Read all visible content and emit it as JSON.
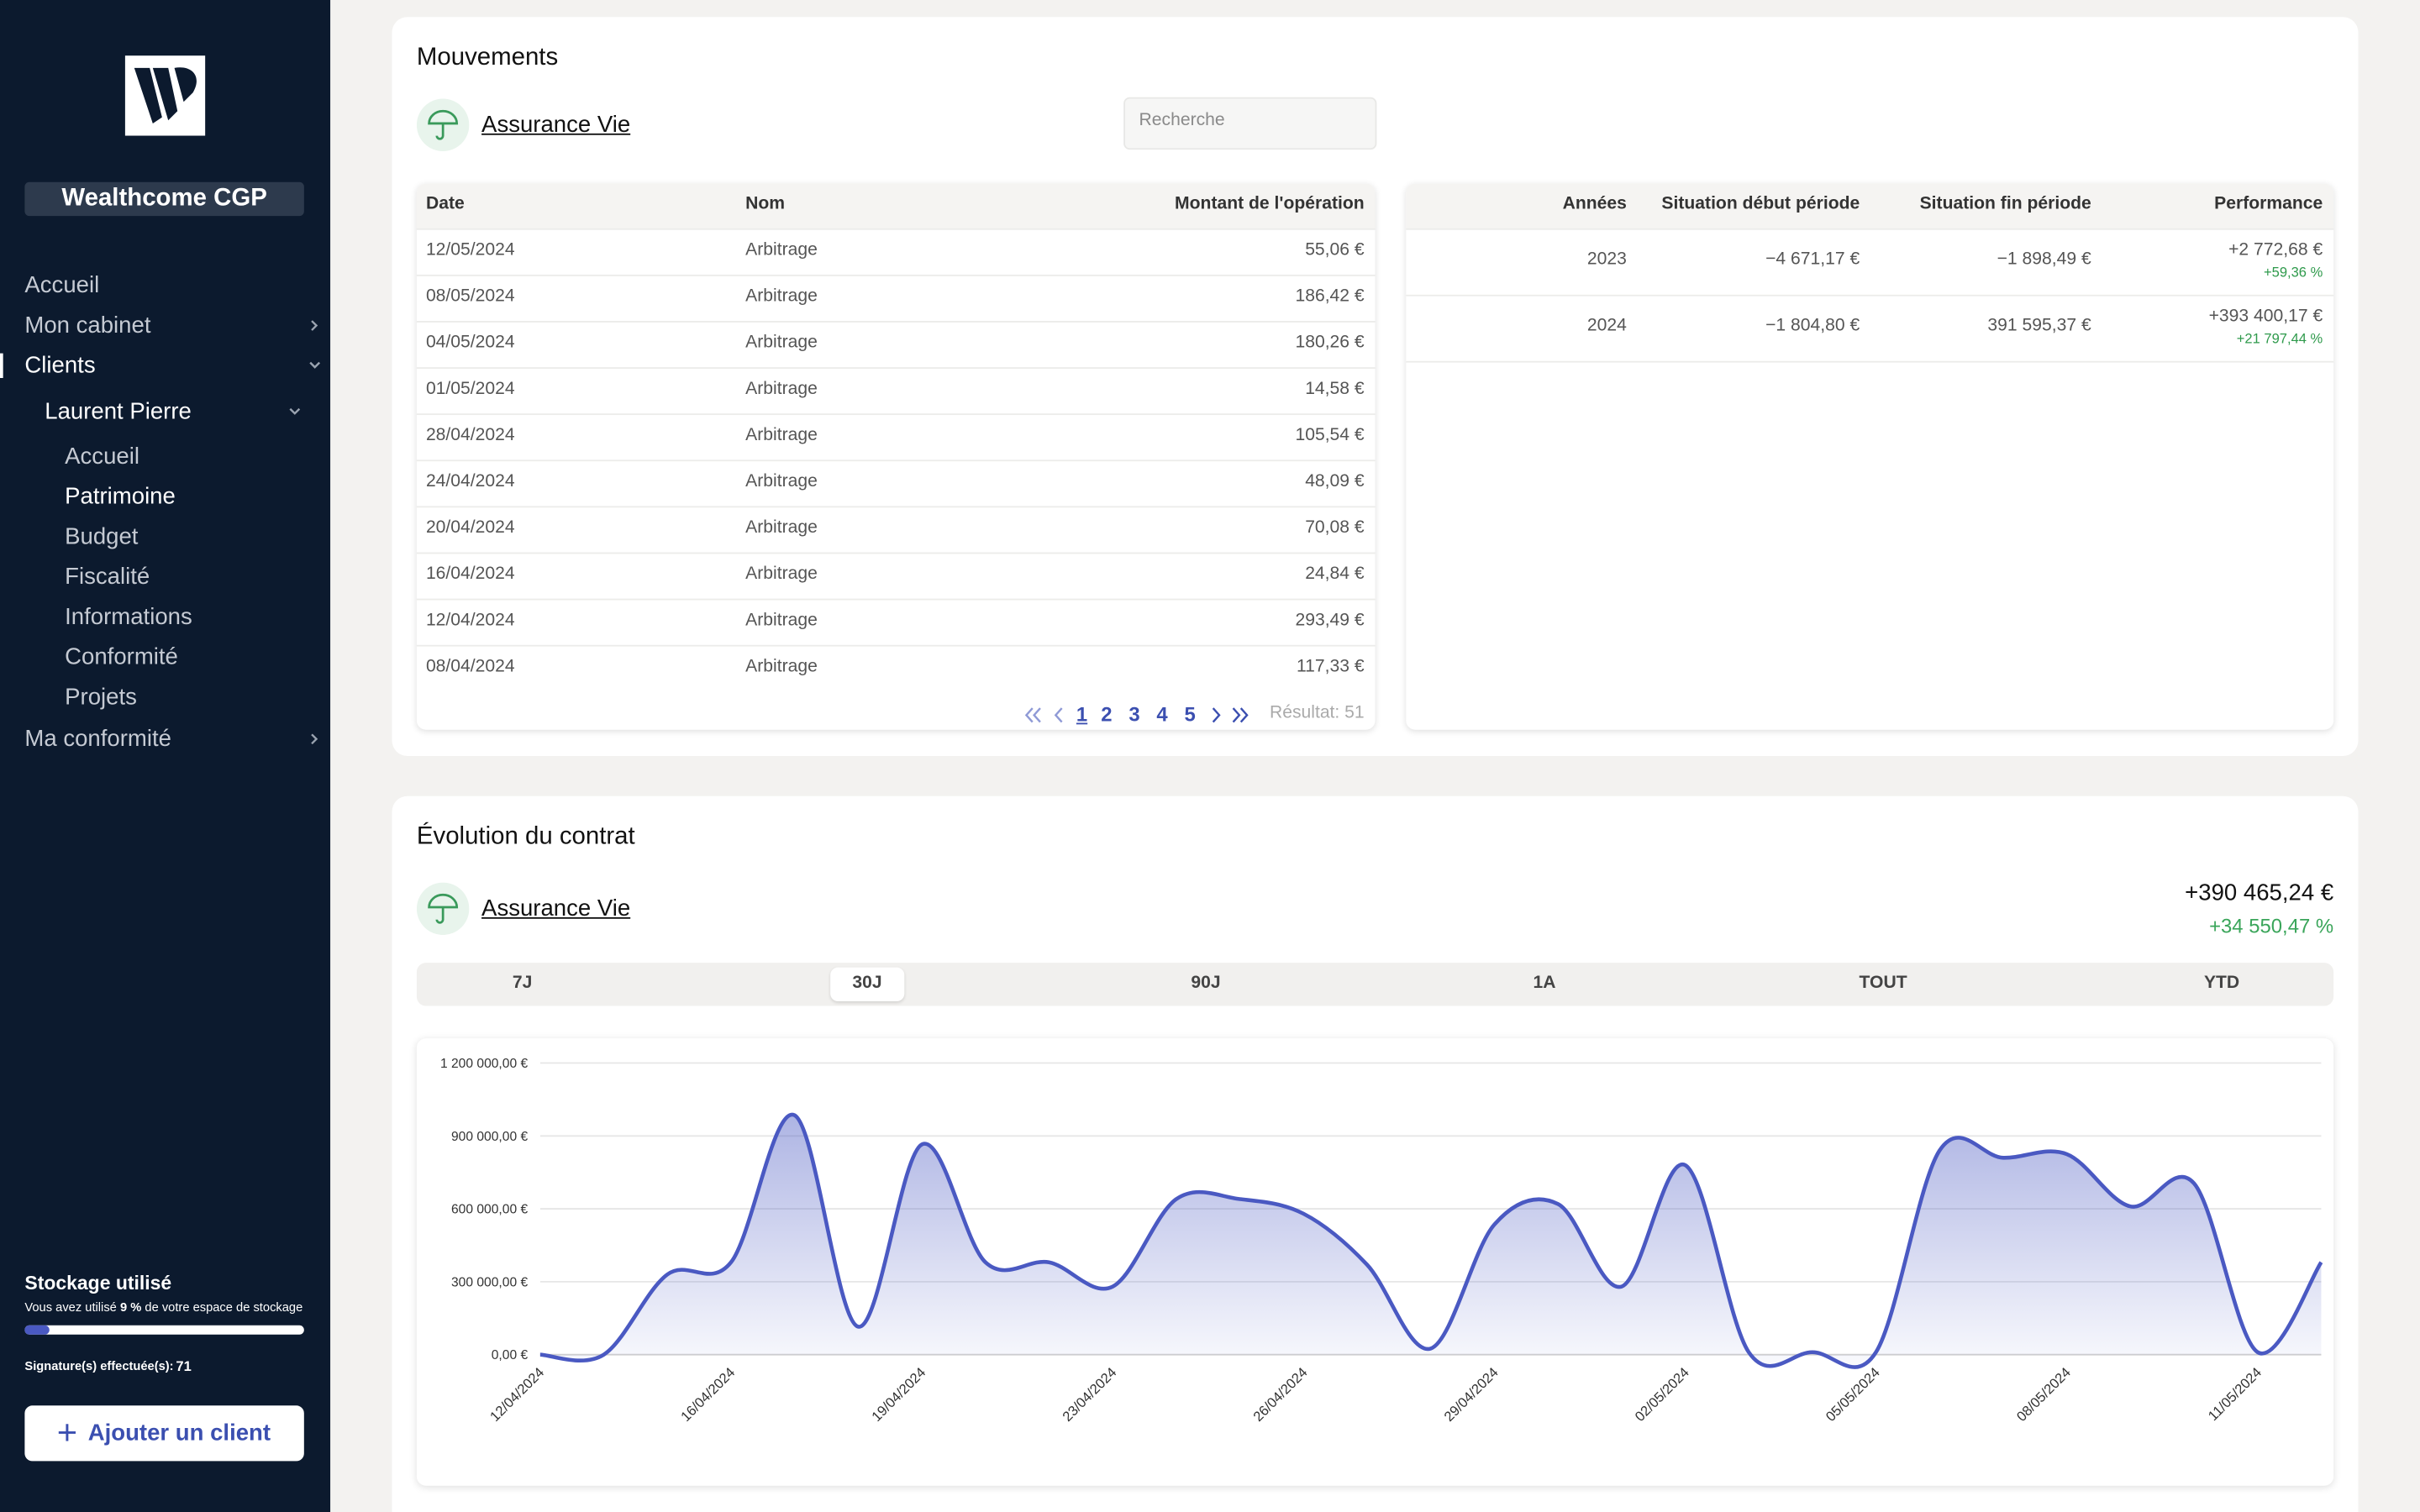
{
  "sidebar": {
    "brand": "Wealthcome CGP",
    "nav": [
      {
        "label": "Accueil"
      },
      {
        "label": "Mon cabinet",
        "expanded": false
      },
      {
        "label": "Clients",
        "expanded": true,
        "active": true
      },
      {
        "label": "Laurent Pierre",
        "expanded": true,
        "level": 1
      },
      {
        "label": "Accueil",
        "level": 2
      },
      {
        "label": "Patrimoine",
        "level": 2,
        "active": true
      },
      {
        "label": "Budget",
        "level": 2
      },
      {
        "label": "Fiscalité",
        "level": 2
      },
      {
        "label": "Informations",
        "level": 2
      },
      {
        "label": "Conformité",
        "level": 2
      },
      {
        "label": "Projets",
        "level": 2
      },
      {
        "label": "Ma conformité",
        "expanded": false
      }
    ],
    "storage": {
      "title": "Stockage utilisé",
      "text_before": "Vous avez utilisé",
      "used_percent": 9,
      "used_label": "9 %",
      "text_after": "de votre espace de stockage",
      "signatures_label": "Signature(s) effectuée(s):",
      "signatures": 71
    },
    "add_client": "Ajouter un client"
  },
  "mouvements": {
    "title": "Mouvements",
    "contract": "Assurance Vie",
    "search_placeholder": "Recherche",
    "table": {
      "headers": [
        "Date",
        "Nom",
        "Montant de l'opération"
      ],
      "rows": [
        [
          "12/05/2024",
          "Arbitrage",
          "55,06 €"
        ],
        [
          "08/05/2024",
          "Arbitrage",
          "186,42 €"
        ],
        [
          "04/05/2024",
          "Arbitrage",
          "180,26 €"
        ],
        [
          "01/05/2024",
          "Arbitrage",
          "14,58 €"
        ],
        [
          "28/04/2024",
          "Arbitrage",
          "105,54 €"
        ],
        [
          "24/04/2024",
          "Arbitrage",
          "48,09 €"
        ],
        [
          "20/04/2024",
          "Arbitrage",
          "70,08 €"
        ],
        [
          "16/04/2024",
          "Arbitrage",
          "24,84 €"
        ],
        [
          "12/04/2024",
          "Arbitrage",
          "293,49 €"
        ],
        [
          "08/04/2024",
          "Arbitrage",
          "117,33 €"
        ]
      ]
    },
    "pagination": {
      "pages": [
        "1",
        "2",
        "3",
        "4",
        "5"
      ],
      "current": 0,
      "result": "Résultat: 51"
    },
    "performance": {
      "headers": [
        "Années",
        "Situation début période",
        "Situation fin période",
        "Performance"
      ],
      "rows": [
        {
          "year": "2023",
          "start": "−4 671,17 €",
          "end": "−1 898,49 €",
          "perf": "+2 772,68 €",
          "perf_pct": "+59,36 %"
        },
        {
          "year": "2024",
          "start": "−1 804,80 €",
          "end": "391 595,37 €",
          "perf": "+393 400,17 €",
          "perf_pct": "+21 797,44 %"
        }
      ]
    }
  },
  "evolution": {
    "title": "Évolution du contrat",
    "contract": "Assurance Vie",
    "total": "+390 465,24 €",
    "total_pct": "+34 550,47 %",
    "tabs": [
      "7J",
      "30J",
      "90J",
      "1A",
      "TOUT",
      "YTD"
    ],
    "active_tab": 1,
    "chart": {
      "type": "area",
      "color": "#4a59c2",
      "categories": [
        "12/04/2024",
        null,
        null,
        "16/04/2024",
        null,
        null,
        "19/04/2024",
        null,
        null,
        "23/04/2024",
        null,
        null,
        "26/04/2024",
        null,
        null,
        "29/04/2024",
        null,
        null,
        "02/05/2024",
        null,
        null,
        "05/05/2024",
        null,
        null,
        "08/05/2024",
        null,
        null,
        "11/05/2024",
        null
      ],
      "values": [
        0,
        0,
        330000,
        380000,
        985000,
        115000,
        865000,
        380000,
        380000,
        280000,
        640000,
        640000,
        580000,
        370000,
        25000,
        535000,
        620000,
        280000,
        780000,
        10000,
        10000,
        10000,
        840000,
        810000,
        825000,
        610000,
        705000,
        10000,
        380000
      ],
      "ylim": [
        0,
        1200000
      ],
      "yticks": [
        {
          "value": 0,
          "label": "0,00 €"
        },
        {
          "value": 300000,
          "label": "300 000,00 €"
        },
        {
          "value": 600000,
          "label": "600 000,00 €"
        },
        {
          "value": 900000,
          "label": "900 000,00 €"
        },
        {
          "value": 1200000,
          "label": "1 200 000,00 €"
        }
      ],
      "grid": true
    }
  }
}
